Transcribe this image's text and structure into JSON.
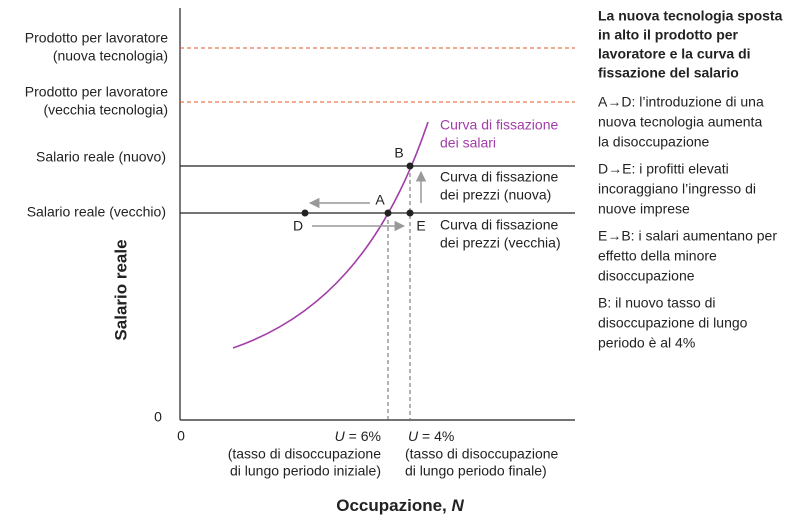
{
  "axes": {
    "y_label": "Salario reale",
    "x_label": "Occupazione, ",
    "x_label_symbol": "N",
    "y_zero": "0",
    "x_zero": "0"
  },
  "left_labels": {
    "output_new": [
      "Prodotto per lavoratore",
      "(nuova tecnologia)"
    ],
    "output_old": [
      "Prodotto per lavoratore",
      "(vecchia tecnologia)"
    ],
    "wage_new": "Salario reale (nuovo)",
    "wage_old": "Salario reale (vecchio)"
  },
  "curve_labels": {
    "wage_setting": [
      "Curva di fissazione",
      "dei salari"
    ],
    "price_new": [
      "Curva di fissazione",
      "dei prezzi (nuova)"
    ],
    "price_old": [
      "Curva di fissazione",
      "dei prezzi (vecchia)"
    ]
  },
  "points": [
    "A",
    "B",
    "D",
    "E"
  ],
  "u_initial": {
    "symbol": "U",
    "text": " = 6%",
    "note": [
      "(tasso di disoccupazione",
      "di lungo periodo iniziale)"
    ]
  },
  "u_final": {
    "symbol": "U",
    "text": " = 4%",
    "note": [
      "(tasso di disoccupazione",
      "di lungo periodo finale)"
    ]
  },
  "panel": {
    "title": [
      "La nuova tecnologia sposta",
      "in alto il prodotto per",
      "lavoratore e la curva di",
      "fissazione del salario"
    ],
    "paragraphs": [
      [
        "A→D: l’introduzione di una",
        "nuova tecnologia aumenta",
        "la disoccupazione"
      ],
      [
        "D→E: i profitti elevati",
        "incoraggiano l’ingresso di",
        "nuove imprese"
      ],
      [
        "E→B: i salari aumentano per",
        "effetto della minore",
        "disoccupazione"
      ],
      [
        "B: il nuovo tasso di",
        "disoccupazione di lungo",
        "periodo è al 4%"
      ]
    ]
  }
}
